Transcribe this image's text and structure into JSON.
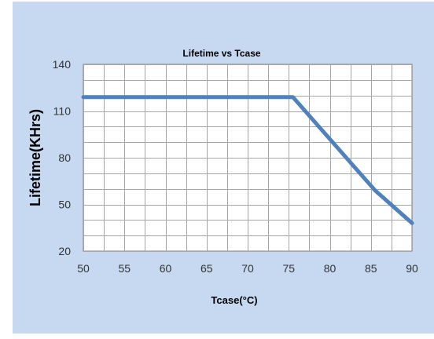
{
  "chart_data": {
    "type": "line",
    "title": "Lifetime vs Tcase",
    "xlabel": "Tcase(°C)",
    "ylabel": "Lifetime(KHrs)",
    "xlim": [
      50,
      90
    ],
    "ylim": [
      20,
      140
    ],
    "x_ticks": [
      50,
      55,
      60,
      65,
      70,
      75,
      80,
      85,
      90
    ],
    "y_ticks": [
      20,
      50,
      80,
      110,
      140
    ],
    "x_minor_step": 2.5,
    "y_minor_step": 10,
    "grid": true,
    "legend": "none",
    "series": [
      {
        "x": [
          50,
          75.5,
          85.5,
          90
        ],
        "y": [
          119,
          119,
          59,
          38
        ]
      }
    ]
  },
  "colors": {
    "background": "#c6d9f1",
    "plot_area": "#ffffff",
    "grid": "#a6a6a6",
    "line": "#4f81bd"
  }
}
